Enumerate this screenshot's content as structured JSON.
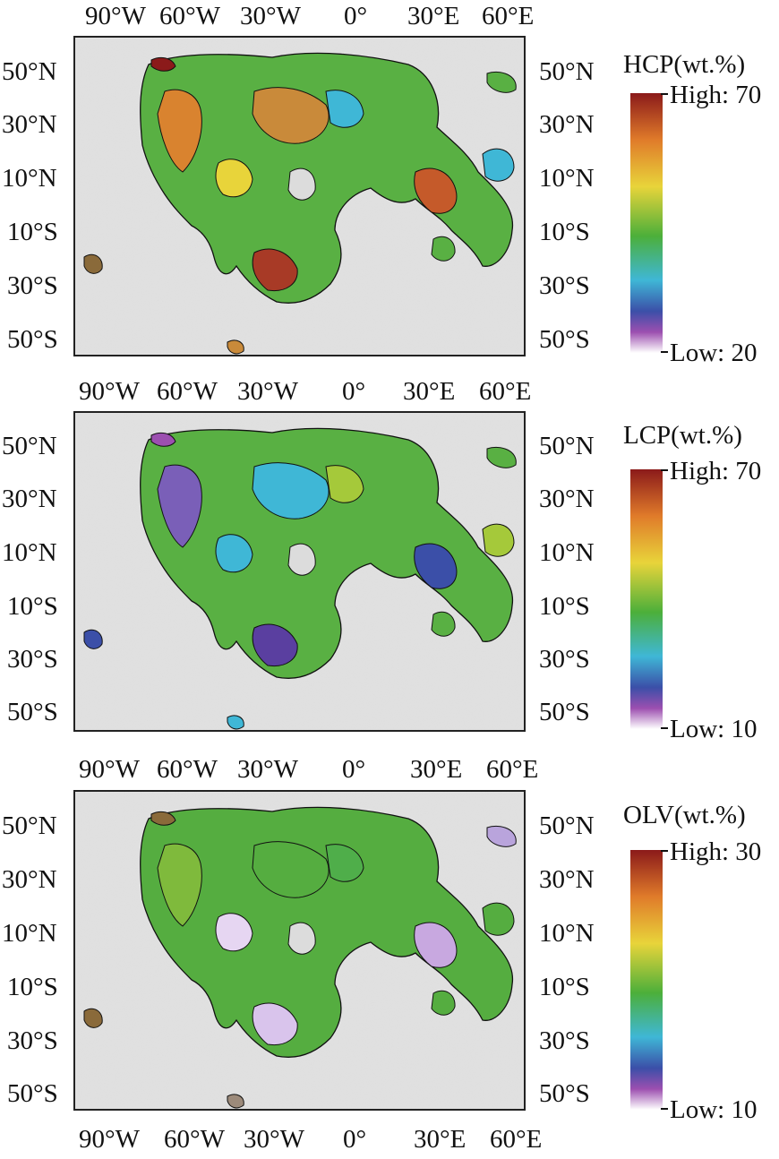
{
  "panels": [
    {
      "id": "hcp",
      "top_lon_labels": [
        "90°W",
        "60°W",
        "30°W",
        "0°",
        "30°E",
        "60°E"
      ],
      "lat_labels_left": [
        "50°N",
        "30°N",
        "10°N",
        "10°S",
        "30°S",
        "50°S"
      ],
      "lat_labels_right": [
        "50°N",
        "30°N",
        "10°N",
        "10°S",
        "30°S",
        "50°S"
      ],
      "legend": {
        "title": "HCP(wt.%)",
        "high": "High: 70",
        "low": "Low: 20"
      }
    },
    {
      "id": "lcp",
      "top_lon_labels": [
        "90°W",
        "60°W",
        "30°W",
        "0°",
        "30°E",
        "60°E"
      ],
      "lat_labels_left": [
        "50°N",
        "30°N",
        "10°N",
        "10°S",
        "30°S",
        "50°S"
      ],
      "lat_labels_right": [
        "50°N",
        "30°N",
        "10°N",
        "10°S",
        "30°S",
        "50°S"
      ],
      "legend": {
        "title": "LCP(wt.%)",
        "high": "High: 70",
        "low": "Low: 10"
      }
    },
    {
      "id": "olv",
      "top_lon_labels": [
        "90°W",
        "60°W",
        "30°W",
        "0°",
        "30°E",
        "60°E"
      ],
      "lat_labels_left": [
        "50°N",
        "30°N",
        "10°N",
        "10°S",
        "30°S",
        "50°S"
      ],
      "lat_labels_right": [
        "50°N",
        "30°N",
        "10°N",
        "10°S",
        "30°S",
        "50°S"
      ],
      "legend": {
        "title": "OLV(wt.%)",
        "high": "High: 30",
        "low": "Low: 10"
      }
    }
  ],
  "bottom_lon_labels": [
    "90°W",
    "60°W",
    "30°W",
    "0°",
    "30°E",
    "60°E"
  ],
  "colors": {
    "high": "#8b1a1a",
    "orange": "#e07b2a",
    "yellow": "#e8d43a",
    "green": "#4caf3a",
    "cyan": "#3fb7d6",
    "blue": "#3b4fa8",
    "purple": "#9c4fb0",
    "low": "#ffffff",
    "basemap": "#dcdcdc",
    "mare_outline": "#111111"
  }
}
